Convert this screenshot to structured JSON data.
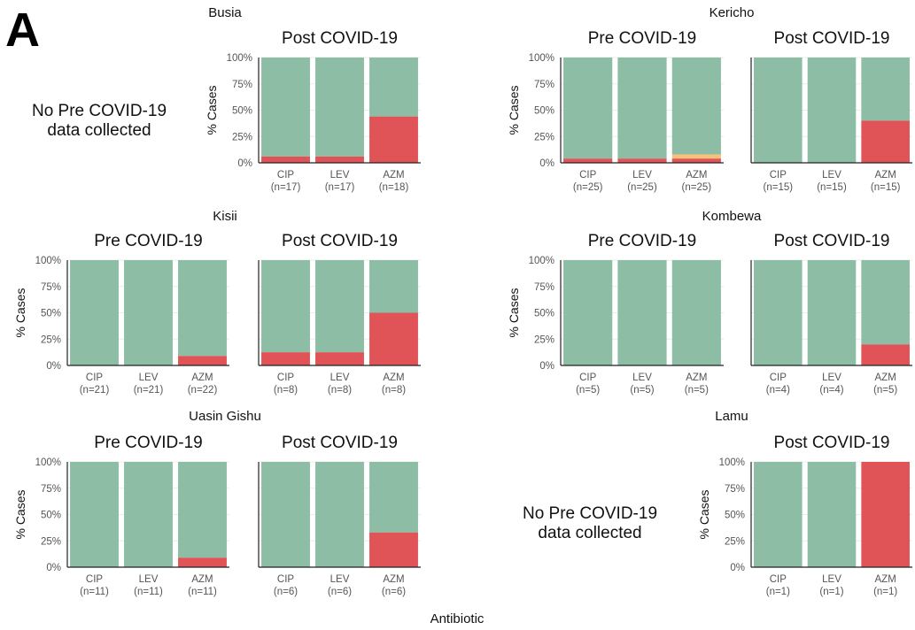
{
  "figure": {
    "panel_letter": "A",
    "x_axis_title": "Antibiotic",
    "y_axis_title": "% Cases",
    "y_ticks": [
      "0%",
      "25%",
      "50%",
      "75%",
      "100%"
    ],
    "colors": {
      "susceptible": "#8dbea5",
      "resistant": "#e05356",
      "intermediate": "#f6c27a"
    }
  },
  "chart_data": [
    {
      "type": "bar",
      "stacked": true,
      "site": "Busia",
      "period": "Post COVID-19",
      "categories": [
        "CIP",
        "LEV",
        "AZM"
      ],
      "n_labels": [
        "(n=17)",
        "(n=17)",
        "(n=18)"
      ],
      "resistant": [
        6,
        6,
        44
      ],
      "intermediate": [
        0,
        0,
        0
      ],
      "ylim": [
        0,
        100
      ]
    },
    {
      "type": "bar",
      "stacked": true,
      "site": "Kericho",
      "period": "Pre COVID-19",
      "categories": [
        "CIP",
        "LEV",
        "AZM"
      ],
      "n_labels": [
        "(n=25)",
        "(n=25)",
        "(n=25)"
      ],
      "resistant": [
        4,
        4,
        4
      ],
      "intermediate": [
        0,
        0,
        4
      ],
      "ylim": [
        0,
        100
      ]
    },
    {
      "type": "bar",
      "stacked": true,
      "site": "Kericho",
      "period": "Post COVID-19",
      "categories": [
        "CIP",
        "LEV",
        "AZM"
      ],
      "n_labels": [
        "(n=15)",
        "(n=15)",
        "(n=15)"
      ],
      "resistant": [
        0,
        0,
        40
      ],
      "intermediate": [
        0,
        0,
        0
      ],
      "ylim": [
        0,
        100
      ]
    },
    {
      "type": "bar",
      "stacked": true,
      "site": "Kisii",
      "period": "Pre COVID-19",
      "categories": [
        "CIP",
        "LEV",
        "AZM"
      ],
      "n_labels": [
        "(n=21)",
        "(n=21)",
        "(n=22)"
      ],
      "resistant": [
        0,
        0,
        9
      ],
      "intermediate": [
        0,
        0,
        0
      ],
      "ylim": [
        0,
        100
      ]
    },
    {
      "type": "bar",
      "stacked": true,
      "site": "Kisii",
      "period": "Post COVID-19",
      "categories": [
        "CIP",
        "LEV",
        "AZM"
      ],
      "n_labels": [
        "(n=8)",
        "(n=8)",
        "(n=8)"
      ],
      "resistant": [
        12.5,
        12.5,
        50
      ],
      "intermediate": [
        0,
        0,
        0
      ],
      "ylim": [
        0,
        100
      ]
    },
    {
      "type": "bar",
      "stacked": true,
      "site": "Kombewa",
      "period": "Pre COVID-19",
      "categories": [
        "CIP",
        "LEV",
        "AZM"
      ],
      "n_labels": [
        "(n=5)",
        "(n=5)",
        "(n=5)"
      ],
      "resistant": [
        0,
        0,
        0
      ],
      "intermediate": [
        0,
        0,
        0
      ],
      "ylim": [
        0,
        100
      ]
    },
    {
      "type": "bar",
      "stacked": true,
      "site": "Kombewa",
      "period": "Post COVID-19",
      "categories": [
        "CIP",
        "LEV",
        "AZM"
      ],
      "n_labels": [
        "(n=4)",
        "(n=4)",
        "(n=5)"
      ],
      "resistant": [
        0,
        0,
        20
      ],
      "intermediate": [
        0,
        0,
        0
      ],
      "ylim": [
        0,
        100
      ]
    },
    {
      "type": "bar",
      "stacked": true,
      "site": "Uasin Gishu",
      "period": "Pre COVID-19",
      "categories": [
        "CIP",
        "LEV",
        "AZM"
      ],
      "n_labels": [
        "(n=11)",
        "(n=11)",
        "(n=11)"
      ],
      "resistant": [
        0,
        0,
        9
      ],
      "intermediate": [
        0,
        0,
        0
      ],
      "ylim": [
        0,
        100
      ]
    },
    {
      "type": "bar",
      "stacked": true,
      "site": "Uasin Gishu",
      "period": "Post COVID-19",
      "categories": [
        "CIP",
        "LEV",
        "AZM"
      ],
      "n_labels": [
        "(n=6)",
        "(n=6)",
        "(n=6)"
      ],
      "resistant": [
        0,
        0,
        33
      ],
      "intermediate": [
        0,
        0,
        0
      ],
      "ylim": [
        0,
        100
      ]
    },
    {
      "type": "bar",
      "stacked": true,
      "site": "Lamu",
      "period": "Post COVID-19",
      "categories": [
        "CIP",
        "LEV",
        "AZM"
      ],
      "n_labels": [
        "(n=1)",
        "(n=1)",
        "(n=1)"
      ],
      "resistant": [
        0,
        0,
        100
      ],
      "intermediate": [
        0,
        0,
        0
      ],
      "ylim": [
        0,
        100
      ]
    }
  ],
  "site_titles": [
    "Busia",
    "Kericho",
    "Kisii",
    "Kombewa",
    "Uasin Gishu",
    "Lamu"
  ],
  "no_data_notes": [
    {
      "line1": "No Pre COVID-19",
      "line2": "data collected"
    },
    {
      "line1": "No Pre COVID-19",
      "line2": "data collected"
    }
  ]
}
